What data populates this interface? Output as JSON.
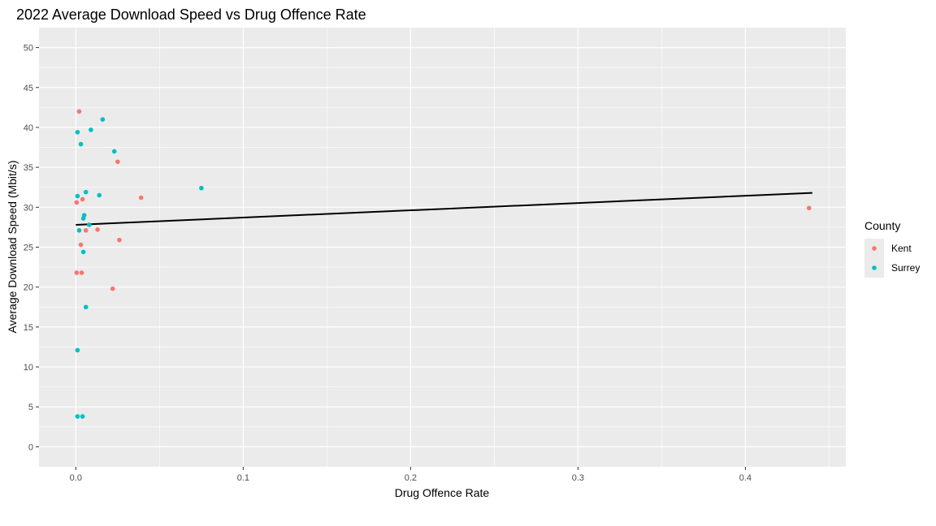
{
  "chart_data": {
    "type": "scatter",
    "title": "2022 Average Download Speed vs Drug Offence Rate",
    "xlabel": "Drug Offence Rate",
    "ylabel": "Average Download Speed (Mbit/s)",
    "xlim": [
      -0.022,
      0.46
    ],
    "ylim": [
      -2.5,
      52.5
    ],
    "x_ticks": [
      0.0,
      0.1,
      0.2,
      0.3,
      0.4
    ],
    "x_tick_labels": [
      "0.0",
      "0.1",
      "0.2",
      "0.3",
      "0.4"
    ],
    "y_ticks": [
      0,
      5,
      10,
      15,
      20,
      25,
      30,
      35,
      40,
      45,
      50
    ],
    "y_tick_labels": [
      "0",
      "5",
      "10",
      "15",
      "20",
      "25",
      "30",
      "35",
      "40",
      "45",
      "50"
    ],
    "grid": true,
    "legend": {
      "title": "County",
      "position": "right"
    },
    "series": [
      {
        "name": "Kent",
        "color": "#f8766d",
        "points": [
          [
            0.002,
            42.0
          ],
          [
            0.025,
            35.7
          ],
          [
            0.0005,
            30.6
          ],
          [
            0.004,
            31.0
          ],
          [
            0.039,
            31.2
          ],
          [
            0.006,
            27.1
          ],
          [
            0.013,
            27.2
          ],
          [
            0.026,
            25.9
          ],
          [
            0.003,
            25.3
          ],
          [
            0.0005,
            21.8
          ],
          [
            0.0035,
            21.8
          ],
          [
            0.022,
            19.8
          ],
          [
            0.438,
            29.9
          ]
        ]
      },
      {
        "name": "Surrey",
        "color": "#00bfc4",
        "points": [
          [
            0.016,
            41.0
          ],
          [
            0.001,
            39.4
          ],
          [
            0.009,
            39.7
          ],
          [
            0.003,
            37.9
          ],
          [
            0.023,
            37.0
          ],
          [
            0.075,
            32.4
          ],
          [
            0.006,
            31.9
          ],
          [
            0.014,
            31.5
          ],
          [
            0.001,
            31.4
          ],
          [
            0.005,
            29.0
          ],
          [
            0.0045,
            28.6
          ],
          [
            0.008,
            27.8
          ],
          [
            0.002,
            27.1
          ],
          [
            0.0045,
            24.4
          ],
          [
            0.006,
            17.5
          ],
          [
            0.001,
            12.1
          ],
          [
            0.001,
            3.8
          ],
          [
            0.004,
            3.8
          ]
        ]
      }
    ],
    "trend_line": {
      "color": "#000000",
      "x": [
        0.0,
        0.44
      ],
      "y": [
        27.8,
        31.8
      ]
    }
  }
}
